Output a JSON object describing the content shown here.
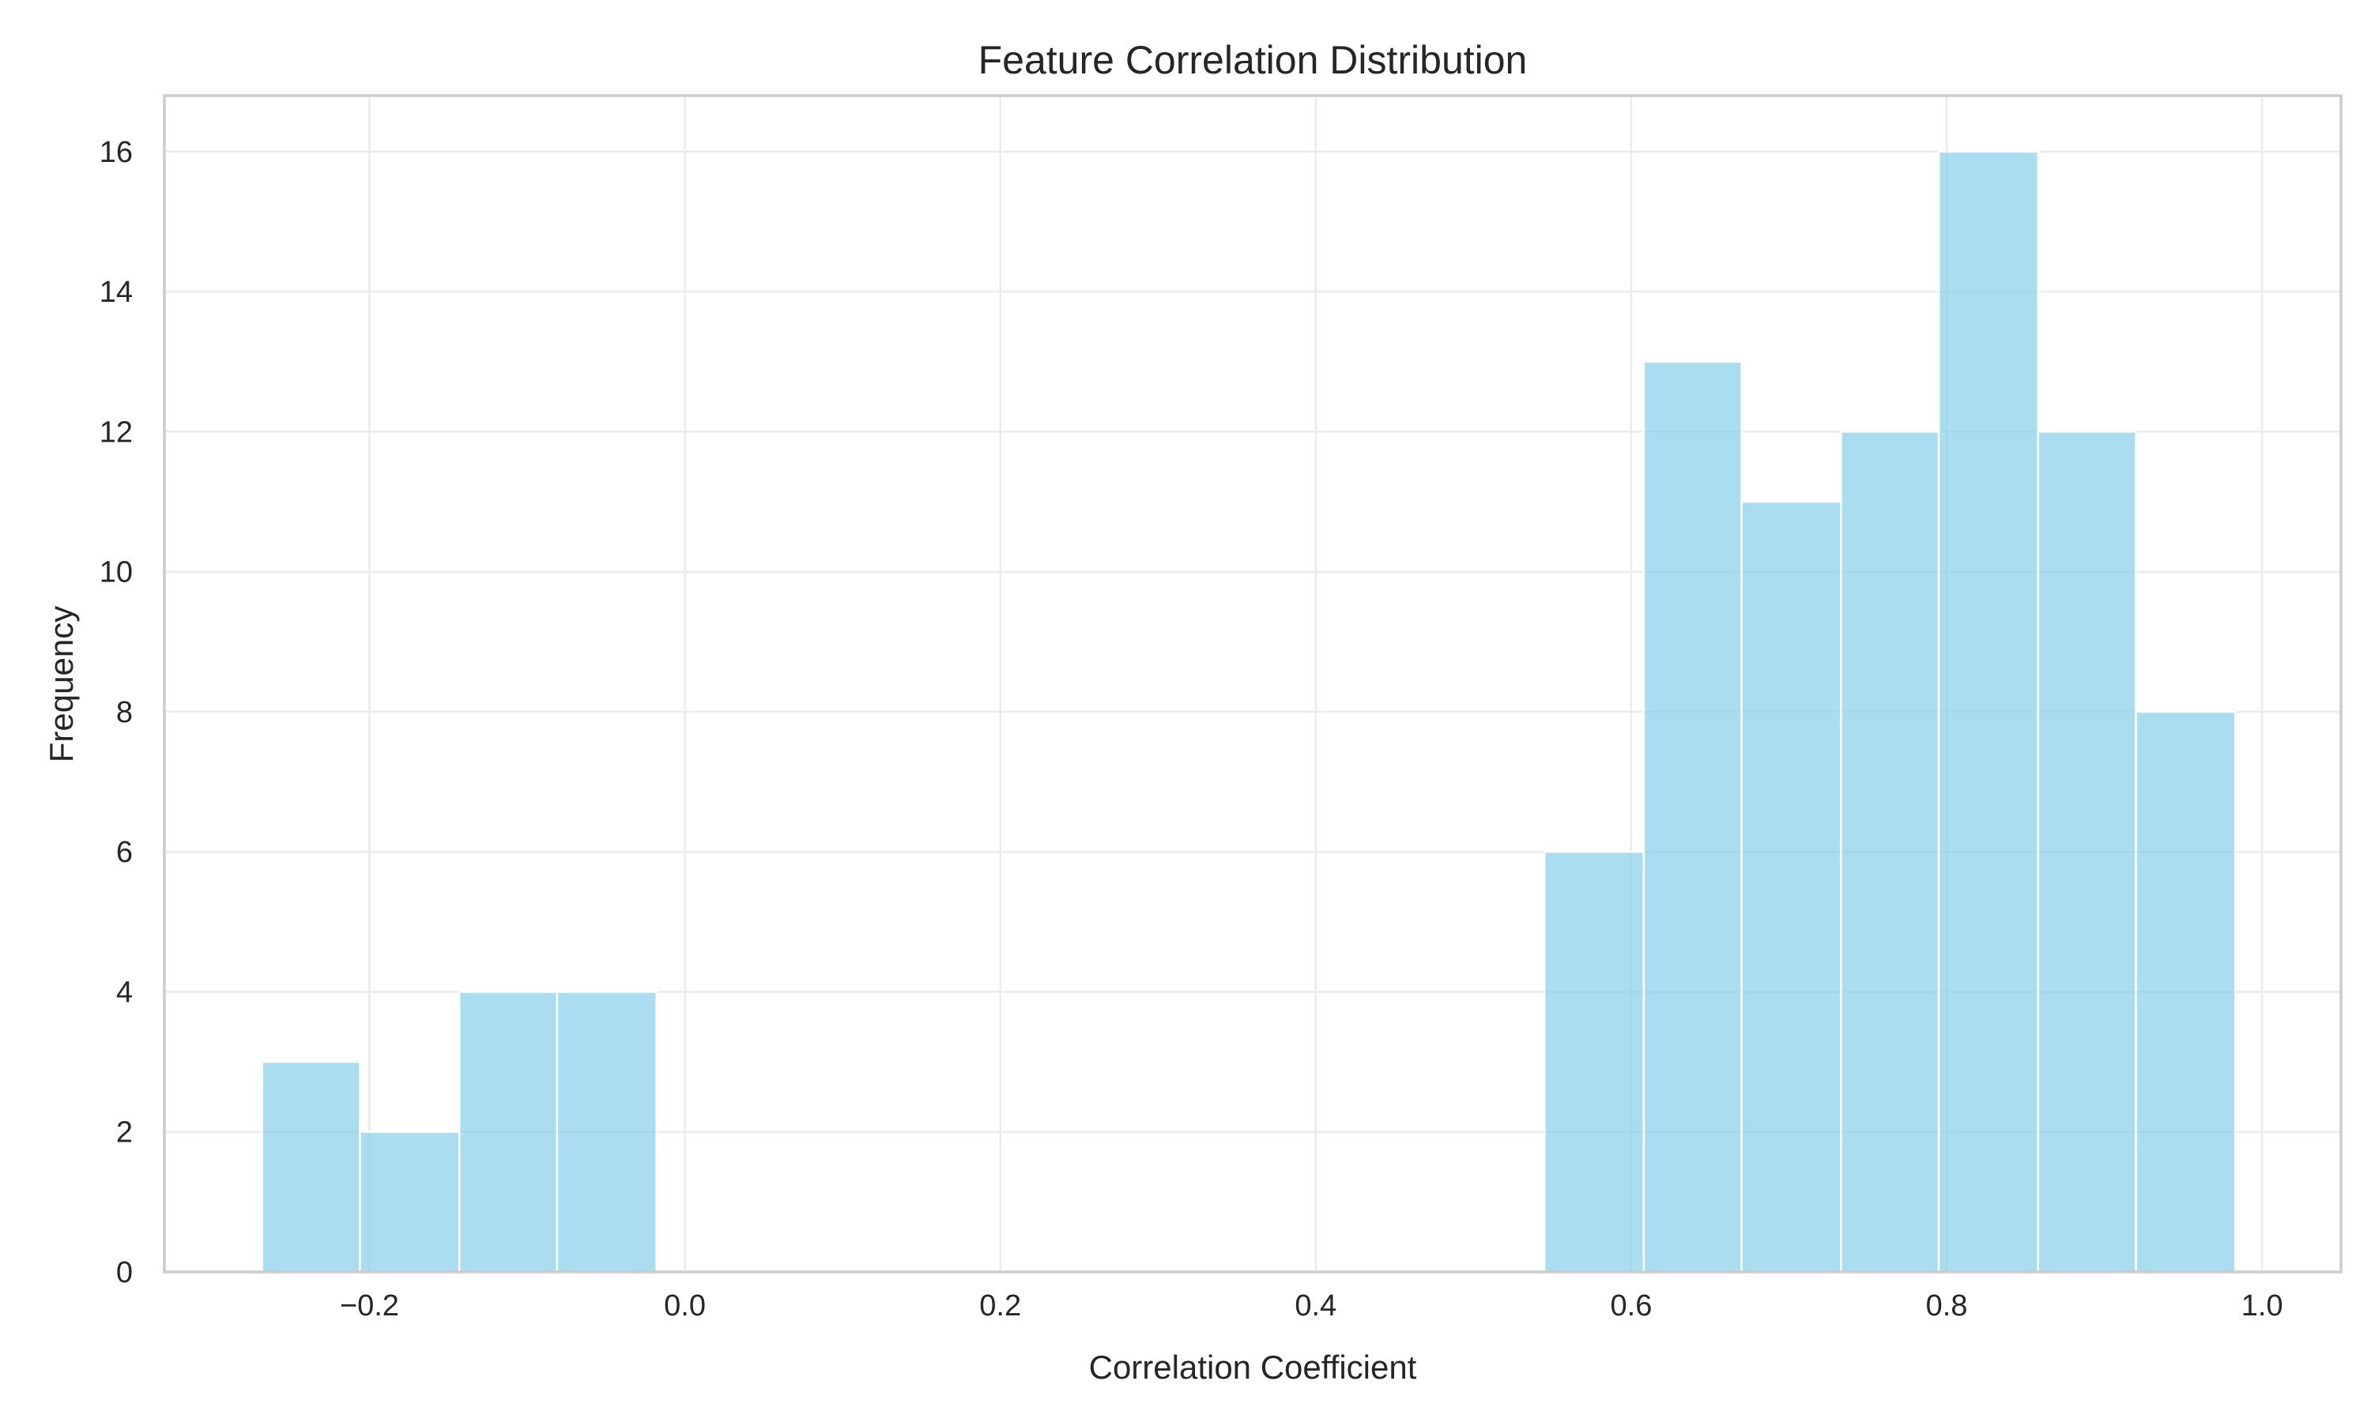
{
  "chart_data": {
    "type": "bar",
    "subtype": "histogram",
    "title": "Feature Correlation Distribution",
    "xlabel": "Correlation Coefficient",
    "ylabel": "Frequency",
    "xlim": [
      -0.33,
      1.05
    ],
    "ylim": [
      0,
      16.8
    ],
    "xticks": [
      -0.2,
      0.0,
      0.2,
      0.4,
      0.6,
      0.8,
      1.0
    ],
    "xtick_labels": [
      "−0.2",
      "0.0",
      "0.2",
      "0.4",
      "0.6",
      "0.8",
      "1.0"
    ],
    "yticks": [
      0,
      2,
      4,
      6,
      8,
      10,
      12,
      14,
      16
    ],
    "ytick_labels": [
      "0",
      "2",
      "4",
      "6",
      "8",
      "10",
      "12",
      "14",
      "16"
    ],
    "grid": true,
    "legend": "none",
    "bar_color": "#87ceeb",
    "bar_alpha": 0.7,
    "bins": [
      {
        "x0": -0.268,
        "x1": -0.206,
        "count": 3
      },
      {
        "x0": -0.206,
        "x1": -0.143,
        "count": 2
      },
      {
        "x0": -0.143,
        "x1": -0.081,
        "count": 4
      },
      {
        "x0": -0.081,
        "x1": -0.018,
        "count": 4
      },
      {
        "x0": -0.018,
        "x1": 0.044,
        "count": 0
      },
      {
        "x0": 0.044,
        "x1": 0.107,
        "count": 0
      },
      {
        "x0": 0.107,
        "x1": 0.17,
        "count": 0
      },
      {
        "x0": 0.17,
        "x1": 0.232,
        "count": 0
      },
      {
        "x0": 0.232,
        "x1": 0.295,
        "count": 0
      },
      {
        "x0": 0.295,
        "x1": 0.357,
        "count": 0
      },
      {
        "x0": 0.357,
        "x1": 0.42,
        "count": 0
      },
      {
        "x0": 0.42,
        "x1": 0.482,
        "count": 0
      },
      {
        "x0": 0.482,
        "x1": 0.545,
        "count": 0
      },
      {
        "x0": 0.545,
        "x1": 0.608,
        "count": 6
      },
      {
        "x0": 0.608,
        "x1": 0.67,
        "count": 13
      },
      {
        "x0": 0.67,
        "x1": 0.733,
        "count": 11
      },
      {
        "x0": 0.733,
        "x1": 0.795,
        "count": 12
      },
      {
        "x0": 0.795,
        "x1": 0.858,
        "count": 16
      },
      {
        "x0": 0.858,
        "x1": 0.92,
        "count": 12
      },
      {
        "x0": 0.92,
        "x1": 0.983,
        "count": 8
      }
    ]
  }
}
